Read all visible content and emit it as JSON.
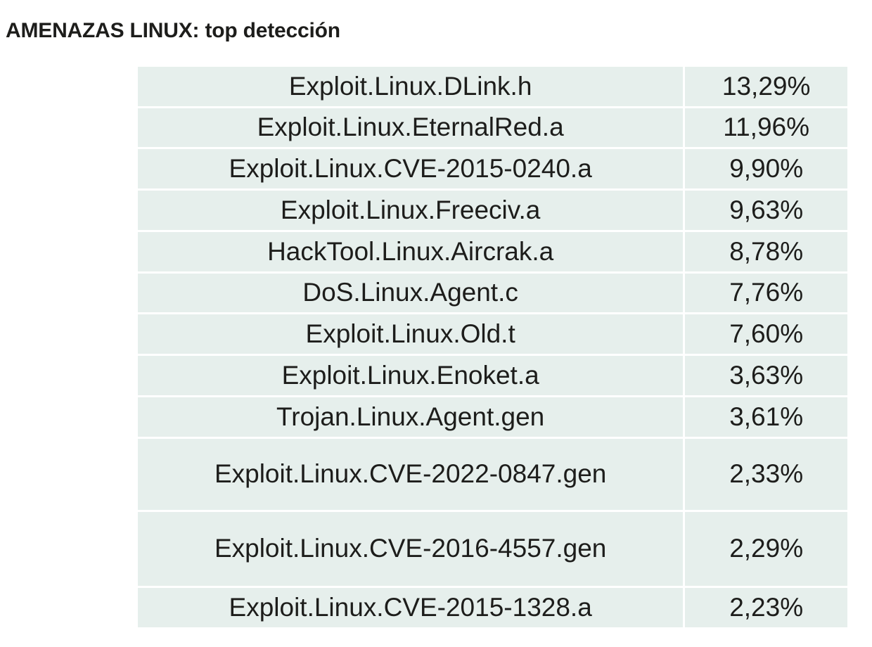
{
  "title": "AMENAZAS LINUX: top detección",
  "rows": [
    {
      "name": "Exploit.Linux.DLink.h",
      "value": "13,29%"
    },
    {
      "name": "Exploit.Linux.EternalRed.a",
      "value": "11,96%"
    },
    {
      "name": "Exploit.Linux.CVE-2015-0240.a",
      "value": "9,90%"
    },
    {
      "name": "Exploit.Linux.Freeciv.a",
      "value": "9,63%"
    },
    {
      "name": "HackTool.Linux.Aircrak.a",
      "value": "8,78%"
    },
    {
      "name": "DoS.Linux.Agent.c",
      "value": "7,76%"
    },
    {
      "name": "Exploit.Linux.Old.t",
      "value": "7,60%"
    },
    {
      "name": "Exploit.Linux.Enoket.a",
      "value": "3,63%"
    },
    {
      "name": "Trojan.Linux.Agent.gen",
      "value": "3,61%"
    },
    {
      "name": "Exploit.Linux.CVE-2022-0847.gen",
      "value": "2,33%"
    },
    {
      "name": "Exploit.Linux.CVE-2016-4557.gen",
      "value": "2,29%"
    },
    {
      "name": "Exploit.Linux.CVE-2015-1328.a",
      "value": "2,23%"
    }
  ],
  "colors": {
    "cell_background": "#e6efec",
    "text": "#1d1d1b",
    "grid_lines": "#ffffff"
  }
}
